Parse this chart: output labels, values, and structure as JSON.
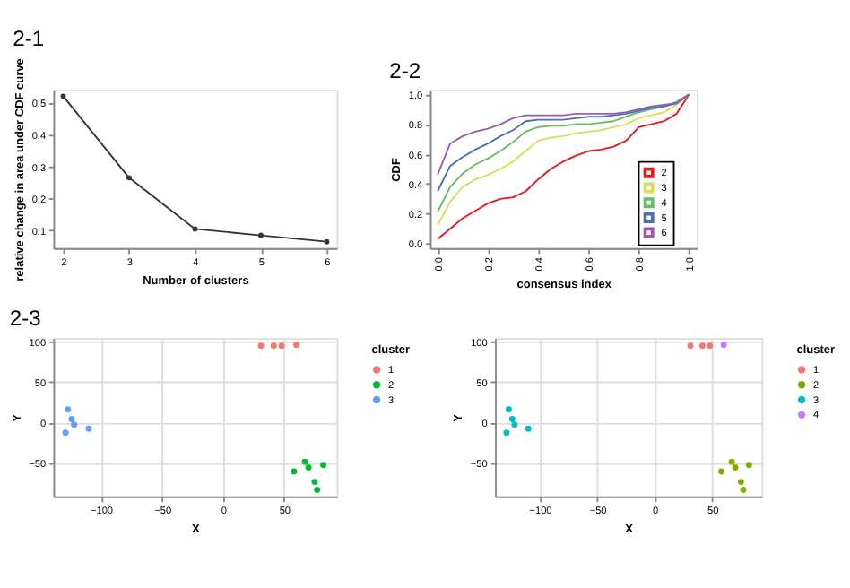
{
  "chart_data": [
    {
      "type": "line",
      "title": "2-1",
      "xlabel": "Number of clusters",
      "ylabel": "relative change in area under CDF curve",
      "x": [
        2,
        3,
        4,
        5,
        6
      ],
      "xlim": [
        1.85,
        6.15
      ],
      "xticks": [
        2,
        3,
        4,
        5,
        6
      ],
      "ylim": [
        0.045,
        0.54
      ],
      "yticks": [
        0.1,
        0.2,
        0.3,
        0.4,
        0.5
      ],
      "grid": false,
      "marker": "circle",
      "line_style": "solid",
      "series": [
        {
          "color": "#333333",
          "values": [
            0.52,
            0.265,
            0.105,
            0.085,
            0.065
          ]
        }
      ]
    },
    {
      "type": "line",
      "title": "2-2",
      "xlabel": "consensus index",
      "ylabel": "CDF",
      "x": [
        0,
        0.05,
        0.1,
        0.15,
        0.2,
        0.25,
        0.3,
        0.35,
        0.4,
        0.45,
        0.5,
        0.55,
        0.6,
        0.65,
        0.7,
        0.75,
        0.8,
        0.85,
        0.9,
        0.95,
        1.0
      ],
      "xlim": [
        -0.03,
        1.03
      ],
      "xticks": [
        {
          "value": 0,
          "label": "0.0"
        },
        {
          "value": 0.2,
          "label": "0.2"
        },
        {
          "value": 0.4,
          "label": "0.4"
        },
        {
          "value": 0.6,
          "label": "0.6"
        },
        {
          "value": 0.8,
          "label": "0.8"
        },
        {
          "value": 1.0,
          "label": "1.0"
        }
      ],
      "ylim": [
        -0.03,
        1.03
      ],
      "yticks": [
        {
          "value": 0,
          "label": "0.0"
        },
        {
          "value": 0.2,
          "label": "0.2"
        },
        {
          "value": 0.4,
          "label": "0.4"
        },
        {
          "value": 0.6,
          "label": "0.6"
        },
        {
          "value": 0.8,
          "label": "0.8"
        },
        {
          "value": 1.0,
          "label": "1.0"
        }
      ],
      "grid": false,
      "legend": "right",
      "line_style": "solid",
      "series": [
        {
          "name": "2",
          "color": "#e31a1c",
          "values": [
            0.03,
            0.1,
            0.17,
            0.22,
            0.27,
            0.3,
            0.31,
            0.35,
            0.43,
            0.5,
            0.55,
            0.59,
            0.62,
            0.63,
            0.65,
            0.69,
            0.78,
            0.8,
            0.82,
            0.87,
            1.0
          ]
        },
        {
          "name": "3",
          "color": "#d4e157",
          "values": [
            0.12,
            0.28,
            0.38,
            0.43,
            0.46,
            0.5,
            0.55,
            0.62,
            0.69,
            0.71,
            0.72,
            0.74,
            0.75,
            0.76,
            0.78,
            0.8,
            0.84,
            0.86,
            0.88,
            0.93,
            1.0
          ]
        },
        {
          "name": "4",
          "color": "#66bb66",
          "values": [
            0.21,
            0.38,
            0.47,
            0.53,
            0.57,
            0.62,
            0.68,
            0.75,
            0.78,
            0.79,
            0.79,
            0.8,
            0.8,
            0.81,
            0.82,
            0.85,
            0.88,
            0.9,
            0.92,
            0.95,
            1.0
          ]
        },
        {
          "name": "5",
          "color": "#4b6fb5",
          "values": [
            0.35,
            0.52,
            0.58,
            0.63,
            0.67,
            0.72,
            0.76,
            0.82,
            0.83,
            0.83,
            0.83,
            0.84,
            0.85,
            0.85,
            0.86,
            0.87,
            0.89,
            0.91,
            0.92,
            0.94,
            1.0
          ]
        },
        {
          "name": "6",
          "color": "#9b59b6",
          "values": [
            0.46,
            0.67,
            0.72,
            0.75,
            0.77,
            0.8,
            0.84,
            0.86,
            0.86,
            0.86,
            0.86,
            0.87,
            0.87,
            0.87,
            0.87,
            0.88,
            0.9,
            0.92,
            0.93,
            0.94,
            1.0
          ]
        }
      ]
    },
    {
      "type": "scatter",
      "title": "2-3",
      "xlabel": "X",
      "ylabel": "Y",
      "legend_title": "cluster",
      "legend": "right",
      "xlim": [
        -139,
        93
      ],
      "xticks": [
        -100,
        -50,
        0,
        50
      ],
      "ylim": [
        -92,
        104.5
      ],
      "yticks": [
        -50,
        0,
        50,
        100
      ],
      "grid": true,
      "marker": "circle",
      "series": [
        {
          "name": "1",
          "color": "#f8766d",
          "x": [
            31,
            41.5,
            48,
            60
          ],
          "values": [
            95,
            95,
            95,
            96
          ]
        },
        {
          "name": "2",
          "color": "#00ba38",
          "x": [
            58,
            67,
            70,
            82,
            75,
            77
          ],
          "values": [
            -61,
            -49,
            -56,
            -53,
            -74,
            -84
          ]
        },
        {
          "name": "3",
          "color": "#619cff",
          "x": [
            -127,
            -124,
            -122,
            -129,
            -110
          ],
          "values": [
            16,
            4,
            -3,
            -13,
            -8
          ]
        }
      ]
    },
    {
      "type": "scatter",
      "xlabel": "X",
      "ylabel": "Y",
      "legend_title": "cluster",
      "legend": "right",
      "xlim": [
        -139,
        93
      ],
      "xticks": [
        -100,
        -50,
        0,
        50
      ],
      "ylim": [
        -92,
        104.5
      ],
      "yticks": [
        -50,
        0,
        50,
        100
      ],
      "grid": true,
      "marker": "circle",
      "series": [
        {
          "name": "1",
          "color": "#f8766d",
          "x": [
            31,
            41.5,
            48
          ],
          "values": [
            95,
            95,
            95
          ]
        },
        {
          "name": "2",
          "color": "#7cae00",
          "x": [
            58,
            67,
            70,
            82,
            75,
            77
          ],
          "values": [
            -61,
            -49,
            -56,
            -53,
            -74,
            -84
          ]
        },
        {
          "name": "3",
          "color": "#00bfc4",
          "x": [
            -127,
            -124,
            -122,
            -129,
            -110
          ],
          "values": [
            16,
            4,
            -3,
            -13,
            -8
          ]
        },
        {
          "name": "4",
          "color": "#c77cff",
          "x": [
            60
          ],
          "values": [
            96
          ]
        }
      ]
    }
  ]
}
